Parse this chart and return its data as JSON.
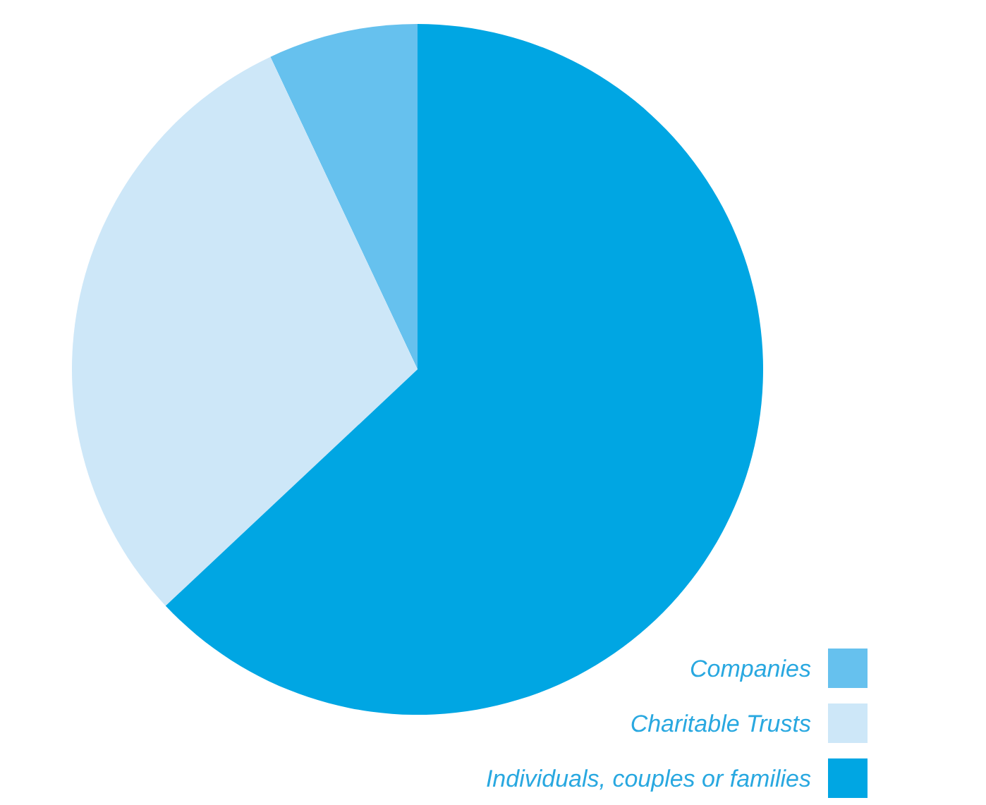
{
  "chart_data": {
    "type": "pie",
    "categories": [
      "Companies",
      "Charitable Trusts",
      "Individuals, couples or families"
    ],
    "values": [
      7,
      30,
      63
    ],
    "colors": [
      "#66c1ee",
      "#cde7f8",
      "#00a6e3"
    ],
    "legend": "bottom right"
  }
}
